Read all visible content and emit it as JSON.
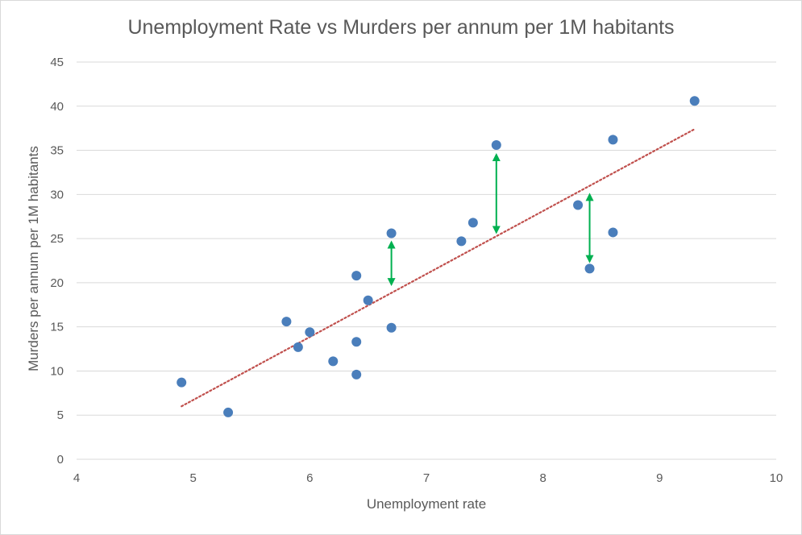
{
  "chart_data": {
    "type": "scatter",
    "title": "Unemployment Rate vs Murders per annum per 1M habitants",
    "xlabel": "Unemployment rate",
    "ylabel": "Murders per annum per 1M habitants",
    "xlim": [
      4,
      10
    ],
    "ylim": [
      0,
      45
    ],
    "xticks": [
      4,
      5,
      6,
      7,
      8,
      9,
      10
    ],
    "yticks": [
      0,
      5,
      10,
      15,
      20,
      25,
      30,
      35,
      40,
      45
    ],
    "grid": "horizontal",
    "legend": "none",
    "series": [
      {
        "points": [
          {
            "x": 4.9,
            "y": 8.7
          },
          {
            "x": 5.3,
            "y": 5.3
          },
          {
            "x": 5.8,
            "y": 15.6
          },
          {
            "x": 5.9,
            "y": 12.7
          },
          {
            "x": 6.0,
            "y": 14.4
          },
          {
            "x": 6.2,
            "y": 11.1
          },
          {
            "x": 6.4,
            "y": 9.6
          },
          {
            "x": 6.4,
            "y": 13.3
          },
          {
            "x": 6.4,
            "y": 20.8
          },
          {
            "x": 6.5,
            "y": 18.0
          },
          {
            "x": 6.7,
            "y": 14.9
          },
          {
            "x": 6.7,
            "y": 25.6
          },
          {
            "x": 7.3,
            "y": 24.7
          },
          {
            "x": 7.4,
            "y": 26.8
          },
          {
            "x": 7.6,
            "y": 35.6
          },
          {
            "x": 8.3,
            "y": 28.8
          },
          {
            "x": 8.4,
            "y": 21.6
          },
          {
            "x": 8.6,
            "y": 25.7
          },
          {
            "x": 8.6,
            "y": 36.2
          },
          {
            "x": 9.3,
            "y": 40.6
          }
        ]
      }
    ],
    "trendline": {
      "type": "linear",
      "x_start": 4.9,
      "y_start": 6.0,
      "x_end": 9.3,
      "y_end": 37.4
    },
    "residual_arrows": [
      {
        "x": 6.7,
        "y_from": 24.6,
        "y_to": 19.8
      },
      {
        "x": 7.6,
        "y_from": 34.5,
        "y_to": 25.7
      },
      {
        "x": 8.4,
        "y_from": 30.0,
        "y_to": 22.4
      }
    ],
    "colors": {
      "points": "#4a7ebb",
      "trendline": "#c0504d",
      "arrows": "#00b050",
      "grid": "#d9d9d9",
      "text": "#595959"
    }
  }
}
